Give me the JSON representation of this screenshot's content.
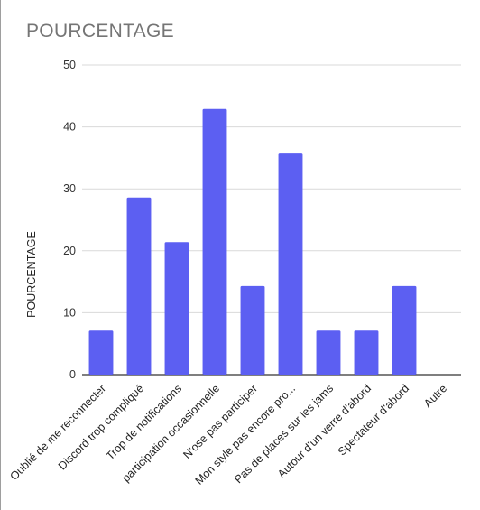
{
  "chart_data": {
    "type": "bar",
    "title": "POURCENTAGE",
    "ylabel": "POURCENTAGE",
    "xlabel": "",
    "categories": [
      "Oublié de me reconnecter",
      "Discord trop compliqué",
      "Trop de notifications",
      "participation occasionnelle",
      "N'ose pas participer",
      "Mon style pas encore pro...",
      "Pas de places sur les jams",
      "Autour d'un verre d'abord",
      "Spectateur d'abord",
      "Autre"
    ],
    "values": [
      7.1,
      28.6,
      21.4,
      42.9,
      14.3,
      35.7,
      7.1,
      7.1,
      14.3,
      0
    ],
    "yticks": [
      0,
      10,
      20,
      30,
      40,
      50
    ],
    "ylim": [
      0,
      50
    ],
    "grid": true,
    "legend": "none",
    "bar_color": "#5c5ff2",
    "grid_color": "#d9d9d9",
    "axis_color": "#333333"
  }
}
